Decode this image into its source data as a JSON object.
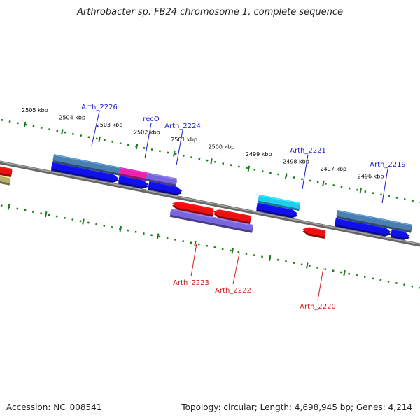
{
  "title": "Arthrobacter sp. FB24 chromosome 1, complete sequence",
  "footer": {
    "accession": "Accession: NC_008541",
    "summary": "Topology: circular; Length: 4,698,945 bp; Genes: 4,214"
  },
  "colors": {
    "backbone": "#808080",
    "tick": "#1a7a1a",
    "forward_label": "#1a1acc",
    "reverse_label": "#cc1a1a",
    "blue": "#1010ee",
    "steelblue": "#4a7fb0",
    "red": "#ee1010",
    "purple": "#7766dd",
    "magenta": "#ee22aa",
    "cyan": "#22ccee",
    "khaki": "#b8b06a"
  },
  "ticks": [
    {
      "label": "2505 kbp",
      "kbp": 2505
    },
    {
      "label": "2504 kbp",
      "kbp": 2504
    },
    {
      "label": "2503 kbp",
      "kbp": 2503
    },
    {
      "label": "2502 kbp",
      "kbp": 2502
    },
    {
      "label": "2501 kbp",
      "kbp": 2501
    },
    {
      "label": "2500 kbp",
      "kbp": 2500
    },
    {
      "label": "2499 kbp",
      "kbp": 2499
    },
    {
      "label": "2498 kbp",
      "kbp": 2498
    },
    {
      "label": "2497 kbp",
      "kbp": 2497
    },
    {
      "label": "2496 kbp",
      "kbp": 2496
    }
  ],
  "forward_labels": [
    "Arth_2226",
    "recO",
    "Arth_2224",
    "Arth_2221",
    "Arth_2219"
  ],
  "reverse_labels": [
    "Arth_2223",
    "Arth_2222",
    "Arth_2220"
  ],
  "features": [
    {
      "kbp_start": 2505.6,
      "kbp_end": 2505.1,
      "row": "rev1",
      "color": "red",
      "dir": "rev"
    },
    {
      "kbp_start": 2505.6,
      "kbp_end": 2505.1,
      "row": "rev2",
      "color": "khaki",
      "dir": "none"
    },
    {
      "kbp_start": 2504.1,
      "kbp_end": 2502.3,
      "row": "fwd2",
      "color": "steelblue",
      "dir": "none"
    },
    {
      "kbp_start": 2504.1,
      "kbp_end": 2502.3,
      "row": "fwd1",
      "color": "blue",
      "dir": "fwd"
    },
    {
      "kbp_start": 2502.3,
      "kbp_end": 2501.5,
      "row": "fwd2",
      "color": "magenta",
      "dir": "none"
    },
    {
      "kbp_start": 2501.6,
      "kbp_end": 2500.8,
      "row": "fwd2",
      "color": "purple",
      "dir": "none"
    },
    {
      "kbp_start": 2502.3,
      "kbp_end": 2501.5,
      "row": "fwd1",
      "color": "blue",
      "dir": "fwd"
    },
    {
      "kbp_start": 2501.5,
      "kbp_end": 2500.6,
      "row": "fwd1",
      "color": "blue",
      "dir": "fwd"
    },
    {
      "kbp_start": 2500.8,
      "kbp_end": 2499.7,
      "row": "rev1",
      "color": "red",
      "dir": "rev"
    },
    {
      "kbp_start": 2499.7,
      "kbp_end": 2498.7,
      "row": "rev1",
      "color": "red",
      "dir": "rev"
    },
    {
      "kbp_start": 2500.8,
      "kbp_end": 2498.6,
      "row": "rev2",
      "color": "purple",
      "dir": "none"
    },
    {
      "kbp_start": 2498.6,
      "kbp_end": 2497.5,
      "row": "fwd2",
      "color": "cyan",
      "dir": "none"
    },
    {
      "kbp_start": 2498.6,
      "kbp_end": 2497.5,
      "row": "fwd1",
      "color": "blue",
      "dir": "fwd"
    },
    {
      "kbp_start": 2497.3,
      "kbp_end": 2496.7,
      "row": "rev1",
      "color": "red",
      "dir": "rev"
    },
    {
      "kbp_start": 2496.5,
      "kbp_end": 2495.0,
      "row": "fwd2",
      "color": "steelblue",
      "dir": "none"
    },
    {
      "kbp_start": 2496.5,
      "kbp_end": 2495.0,
      "row": "fwd1",
      "color": "blue",
      "dir": "fwd"
    },
    {
      "kbp_start": 2495.0,
      "kbp_end": 2494.5,
      "row": "fwd2",
      "color": "steelblue",
      "dir": "none"
    },
    {
      "kbp_start": 2495.0,
      "kbp_end": 2494.5,
      "row": "fwd1",
      "color": "blue",
      "dir": "fwd"
    }
  ]
}
